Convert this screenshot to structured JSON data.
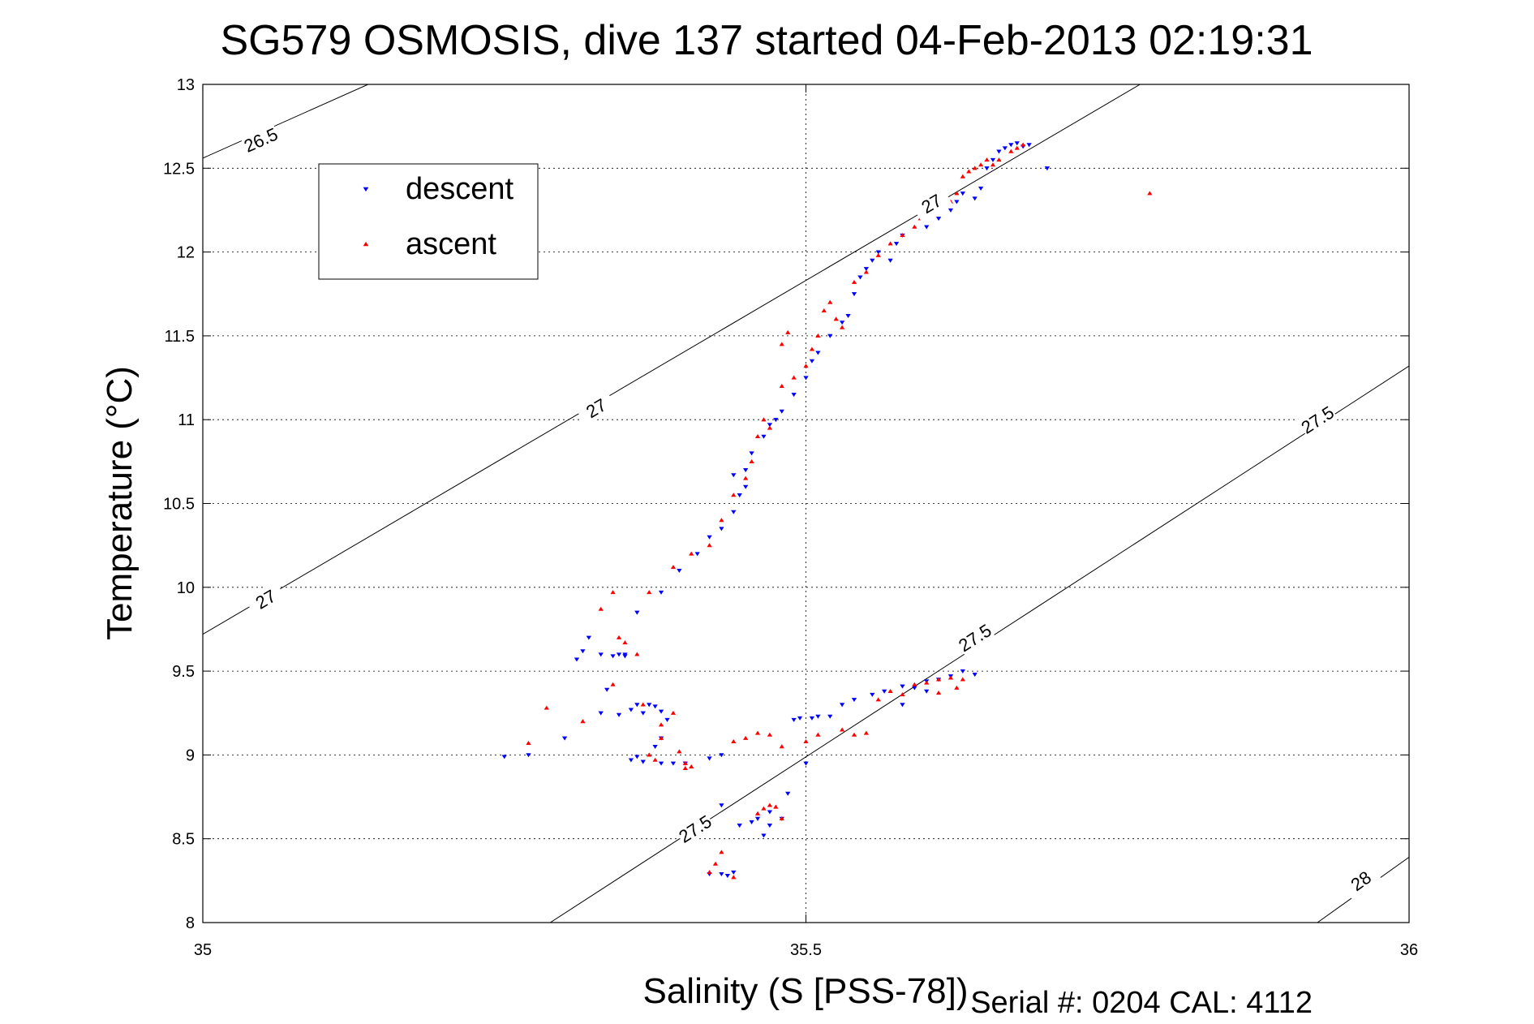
{
  "chart_data": {
    "type": "scatter",
    "title": "SG579 OSMOSIS, dive 137 started 04-Feb-2013 02:19:31",
    "xlabel": "Salinity (S [PSS-78])",
    "ylabel": "Temperature (°C)",
    "xlim": [
      35,
      36
    ],
    "ylim": [
      8,
      13
    ],
    "xticks": [
      35,
      35.5,
      36
    ],
    "xtick_labels": [
      "35",
      "35.5",
      "36"
    ],
    "yticks": [
      8,
      8.5,
      9,
      9.5,
      10,
      10.5,
      11,
      11.5,
      12,
      12.5,
      13
    ],
    "ytick_labels": [
      "8",
      "8.5",
      "9",
      "9.5",
      "10",
      "10.5",
      "11",
      "11.5",
      "12",
      "12.5",
      "13"
    ],
    "grid": true,
    "legend_position": "top-left",
    "legend": [
      "descent",
      "ascent"
    ],
    "footer": "Serial #: 0204  CAL: 4112",
    "density_contours": [
      {
        "label": "26.5",
        "points": [
          [
            35,
            12.56
          ],
          [
            35.137,
            13.0
          ]
        ],
        "label_at": [
          [
            35.048,
            12.67
          ]
        ]
      },
      {
        "label": "27",
        "points": [
          [
            35,
            9.72
          ],
          [
            35.777,
            13.0
          ]
        ],
        "label_at": [
          [
            35.052,
            9.93
          ],
          [
            35.326,
            11.07
          ],
          [
            35.604,
            12.29
          ]
        ]
      },
      {
        "label": "27.5",
        "points": [
          [
            35.288,
            8.0
          ],
          [
            36.0,
            11.32
          ]
        ],
        "label_at": [
          [
            35.408,
            8.56
          ],
          [
            35.64,
            9.7
          ],
          [
            35.924,
            11.0
          ]
        ]
      },
      {
        "label": "28",
        "points": [
          [
            35.924,
            8.0
          ],
          [
            36.0,
            8.39
          ]
        ],
        "label_at": [
          [
            35.96,
            8.25
          ]
        ]
      }
    ],
    "series": [
      {
        "name": "descent",
        "color": "#0000ff",
        "marker": "triangle-down",
        "points": [
          [
            35.25,
            8.99
          ],
          [
            35.27,
            9.0
          ],
          [
            35.3,
            9.1
          ],
          [
            35.31,
            9.57
          ],
          [
            35.315,
            9.62
          ],
          [
            35.32,
            9.7
          ],
          [
            35.33,
            9.6
          ],
          [
            35.34,
            9.59
          ],
          [
            35.345,
            9.6
          ],
          [
            35.35,
            9.59
          ],
          [
            35.335,
            9.39
          ],
          [
            35.33,
            9.25
          ],
          [
            35.345,
            9.24
          ],
          [
            35.355,
            9.27
          ],
          [
            35.36,
            9.3
          ],
          [
            35.365,
            9.25
          ],
          [
            35.37,
            9.3
          ],
          [
            35.375,
            9.29
          ],
          [
            35.38,
            9.26
          ],
          [
            35.385,
            9.21
          ],
          [
            35.38,
            9.1
          ],
          [
            35.375,
            9.05
          ],
          [
            35.36,
            8.99
          ],
          [
            35.355,
            8.97
          ],
          [
            35.365,
            8.96
          ],
          [
            35.38,
            8.95
          ],
          [
            35.39,
            8.95
          ],
          [
            35.4,
            8.95
          ],
          [
            35.42,
            8.98
          ],
          [
            35.43,
            9.0
          ],
          [
            35.35,
            9.6
          ],
          [
            35.36,
            9.85
          ],
          [
            35.38,
            9.97
          ],
          [
            35.395,
            10.1
          ],
          [
            35.41,
            10.2
          ],
          [
            35.42,
            10.3
          ],
          [
            35.43,
            10.35
          ],
          [
            35.44,
            10.45
          ],
          [
            35.445,
            10.55
          ],
          [
            35.45,
            10.6
          ],
          [
            35.44,
            10.67
          ],
          [
            35.45,
            10.7
          ],
          [
            35.455,
            10.8
          ],
          [
            35.465,
            10.9
          ],
          [
            35.47,
            10.97
          ],
          [
            35.475,
            11.0
          ],
          [
            35.48,
            11.05
          ],
          [
            35.49,
            11.15
          ],
          [
            35.5,
            11.25
          ],
          [
            35.505,
            11.35
          ],
          [
            35.51,
            11.4
          ],
          [
            35.52,
            11.5
          ],
          [
            35.53,
            11.58
          ],
          [
            35.535,
            11.62
          ],
          [
            35.54,
            11.75
          ],
          [
            35.545,
            11.85
          ],
          [
            35.55,
            11.9
          ],
          [
            35.555,
            11.95
          ],
          [
            35.56,
            12.0
          ],
          [
            35.57,
            11.95
          ],
          [
            35.575,
            12.05
          ],
          [
            35.58,
            12.1
          ],
          [
            35.6,
            12.15
          ],
          [
            35.61,
            12.2
          ],
          [
            35.62,
            12.25
          ],
          [
            35.625,
            12.3
          ],
          [
            35.63,
            12.35
          ],
          [
            35.645,
            12.38
          ],
          [
            35.65,
            12.5
          ],
          [
            35.655,
            12.55
          ],
          [
            35.66,
            12.6
          ],
          [
            35.665,
            12.62
          ],
          [
            35.67,
            12.64
          ],
          [
            35.675,
            12.65
          ],
          [
            35.68,
            12.63
          ],
          [
            35.685,
            12.64
          ],
          [
            35.64,
            12.32
          ],
          [
            35.7,
            12.5
          ],
          [
            35.42,
            8.29
          ],
          [
            35.43,
            8.29
          ],
          [
            35.435,
            8.28
          ],
          [
            35.44,
            8.3
          ],
          [
            35.445,
            8.58
          ],
          [
            35.455,
            8.6
          ],
          [
            35.46,
            8.62
          ],
          [
            35.47,
            8.66
          ],
          [
            35.48,
            8.62
          ],
          [
            35.465,
            8.52
          ],
          [
            35.47,
            8.58
          ],
          [
            35.485,
            8.77
          ],
          [
            35.49,
            9.21
          ],
          [
            35.495,
            9.22
          ],
          [
            35.505,
            9.22
          ],
          [
            35.51,
            9.23
          ],
          [
            35.52,
            9.23
          ],
          [
            35.53,
            9.3
          ],
          [
            35.54,
            9.33
          ],
          [
            35.555,
            9.36
          ],
          [
            35.565,
            9.38
          ],
          [
            35.58,
            9.41
          ],
          [
            35.59,
            9.4
          ],
          [
            35.6,
            9.44
          ],
          [
            35.61,
            9.45
          ],
          [
            35.62,
            9.47
          ],
          [
            35.63,
            9.5
          ],
          [
            35.64,
            9.48
          ],
          [
            35.6,
            9.38
          ],
          [
            35.5,
            8.95
          ],
          [
            35.43,
            8.7
          ],
          [
            35.58,
            9.3
          ]
        ]
      },
      {
        "name": "ascent",
        "color": "#ff0000",
        "marker": "triangle-up",
        "points": [
          [
            35.27,
            9.07
          ],
          [
            35.285,
            9.28
          ],
          [
            35.315,
            9.2
          ],
          [
            35.33,
            9.87
          ],
          [
            35.345,
            9.7
          ],
          [
            35.34,
            9.42
          ],
          [
            35.36,
            9.6
          ],
          [
            35.365,
            9.3
          ],
          [
            35.38,
            9.1
          ],
          [
            35.37,
            9.0
          ],
          [
            35.375,
            8.97
          ],
          [
            35.38,
            9.18
          ],
          [
            35.39,
            9.25
          ],
          [
            35.395,
            9.02
          ],
          [
            35.4,
            8.95
          ],
          [
            35.405,
            8.93
          ],
          [
            35.4,
            8.92
          ],
          [
            35.35,
            9.67
          ],
          [
            35.34,
            9.97
          ],
          [
            35.37,
            9.97
          ],
          [
            35.39,
            10.12
          ],
          [
            35.405,
            10.2
          ],
          [
            35.42,
            10.25
          ],
          [
            35.43,
            10.4
          ],
          [
            35.44,
            10.55
          ],
          [
            35.45,
            10.65
          ],
          [
            35.455,
            10.75
          ],
          [
            35.46,
            10.9
          ],
          [
            35.465,
            11.0
          ],
          [
            35.47,
            10.95
          ],
          [
            35.48,
            11.2
          ],
          [
            35.49,
            11.25
          ],
          [
            35.5,
            11.32
          ],
          [
            35.505,
            11.42
          ],
          [
            35.51,
            11.5
          ],
          [
            35.515,
            11.65
          ],
          [
            35.52,
            11.7
          ],
          [
            35.525,
            11.6
          ],
          [
            35.53,
            11.55
          ],
          [
            35.48,
            11.45
          ],
          [
            35.485,
            11.52
          ],
          [
            35.54,
            11.82
          ],
          [
            35.55,
            11.88
          ],
          [
            35.56,
            11.98
          ],
          [
            35.57,
            12.05
          ],
          [
            35.58,
            12.1
          ],
          [
            35.59,
            12.15
          ],
          [
            35.595,
            12.2
          ],
          [
            35.6,
            12.25
          ],
          [
            35.61,
            12.28
          ],
          [
            35.62,
            12.3
          ],
          [
            35.625,
            12.35
          ],
          [
            35.63,
            12.45
          ],
          [
            35.635,
            12.48
          ],
          [
            35.64,
            12.5
          ],
          [
            35.645,
            12.52
          ],
          [
            35.65,
            12.55
          ],
          [
            35.655,
            12.52
          ],
          [
            35.66,
            12.55
          ],
          [
            35.67,
            12.6
          ],
          [
            35.675,
            12.62
          ],
          [
            35.68,
            12.64
          ],
          [
            35.785,
            12.35
          ],
          [
            35.42,
            8.3
          ],
          [
            35.425,
            8.35
          ],
          [
            35.43,
            8.42
          ],
          [
            35.44,
            8.27
          ],
          [
            35.46,
            8.65
          ],
          [
            35.465,
            8.68
          ],
          [
            35.47,
            8.7
          ],
          [
            35.475,
            8.69
          ],
          [
            35.48,
            8.62
          ],
          [
            35.45,
            9.1
          ],
          [
            35.46,
            9.13
          ],
          [
            35.47,
            9.12
          ],
          [
            35.48,
            9.05
          ],
          [
            35.53,
            9.15
          ],
          [
            35.54,
            9.12
          ],
          [
            35.55,
            9.13
          ],
          [
            35.56,
            9.33
          ],
          [
            35.57,
            9.38
          ],
          [
            35.58,
            9.36
          ],
          [
            35.59,
            9.42
          ],
          [
            35.6,
            9.43
          ],
          [
            35.61,
            9.45
          ],
          [
            35.62,
            9.46
          ],
          [
            35.63,
            9.45
          ],
          [
            35.625,
            9.4
          ],
          [
            35.61,
            9.37
          ],
          [
            35.5,
            9.08
          ],
          [
            35.51,
            9.12
          ],
          [
            35.44,
            9.08
          ]
        ]
      }
    ]
  }
}
